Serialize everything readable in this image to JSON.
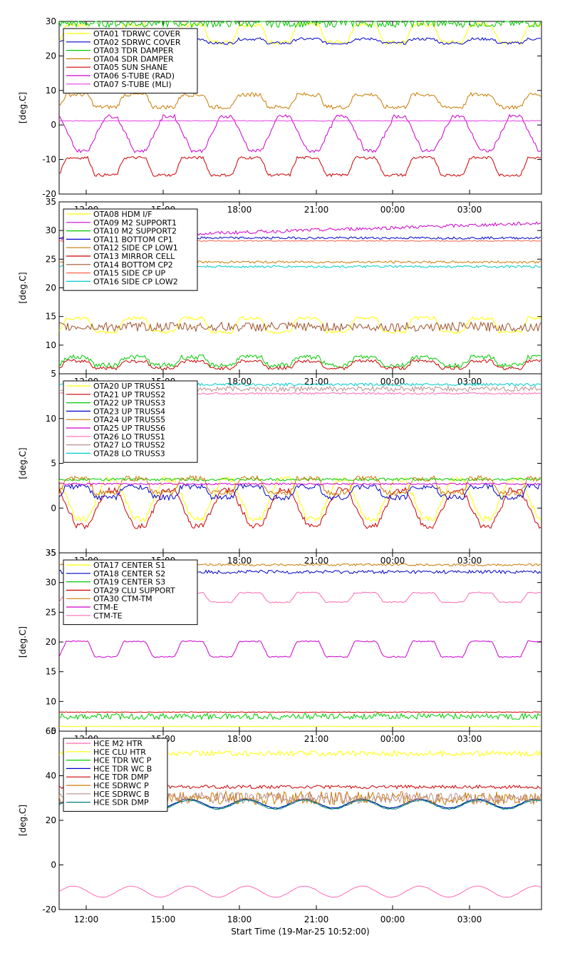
{
  "chart_data": [
    {
      "type": "line",
      "ylabel": "[deg.C]",
      "ylim": [
        -20,
        30
      ],
      "yticks": [
        -20,
        -10,
        0,
        10,
        20,
        30
      ],
      "legend_placement": "top-left",
      "series": [
        {
          "name": "OTA01 TDRWC COVER",
          "color": "#ffff00",
          "kind": "step",
          "base": 26.5,
          "amp": 2.5,
          "jitter": 0.6
        },
        {
          "name": "OTA02 SDRWC COVER",
          "color": "#0000cc",
          "kind": "step",
          "base": 24.3,
          "amp": 0.6,
          "jitter": 0.4
        },
        {
          "name": "OTA03 TDR DAMPER",
          "color": "#00cc00",
          "kind": "noise",
          "base": 29.5,
          "amp": 0.3,
          "jitter": 1.2
        },
        {
          "name": "OTA04 SDR DAMPER",
          "color": "#cc7a00",
          "kind": "step",
          "base": 7,
          "amp": 1.8,
          "jitter": 0.6
        },
        {
          "name": "OTA05 SUN SHANE",
          "color": "#cc0000",
          "kind": "step",
          "base": -12,
          "amp": 2.5,
          "jitter": 0.4
        },
        {
          "name": "OTA06 S-TUBE (RAD)",
          "color": "#cc00cc",
          "kind": "trap",
          "base": -2.5,
          "amp": 5,
          "jitter": 0.5
        },
        {
          "name": "OTA07 S-TUBE (MLI)",
          "color": "#e040e0",
          "kind": "flat",
          "base": 1.2,
          "amp": 0,
          "jitter": 0.1
        }
      ]
    },
    {
      "type": "line",
      "ylabel": "[deg.C]",
      "ylim": [
        5,
        35
      ],
      "yticks": [
        5,
        10,
        15,
        20,
        25,
        30,
        35
      ],
      "xticklabels": [
        "12:00",
        "15:00",
        "18:00",
        "21:00",
        "00:00",
        "03:00"
      ],
      "legend_placement": "top-left",
      "series": [
        {
          "name": "OTA08 HDM I/F",
          "color": "#ffff00",
          "kind": "step",
          "base": 13.5,
          "amp": 1.2,
          "jitter": 0.3
        },
        {
          "name": "OTA09 M2 SUPPORT1",
          "color": "#cc00cc",
          "kind": "rise",
          "base": 30,
          "amp": 1.3,
          "jitter": 0.3
        },
        {
          "name": "OTA10 M2 SUPPORT2",
          "color": "#00cc00",
          "kind": "step",
          "base": 7.2,
          "amp": 0.7,
          "jitter": 0.4
        },
        {
          "name": "OTA11 BOTTOM CP1",
          "color": "#0000cc",
          "kind": "flat",
          "base": 28.7,
          "amp": 0,
          "jitter": 0.2
        },
        {
          "name": "OTA12 SIDE CP LOW1",
          "color": "#cc7a00",
          "kind": "flat",
          "base": 24.5,
          "amp": 0.3,
          "jitter": 0.2
        },
        {
          "name": "OTA13 MIRROR CELL",
          "color": "#cc0000",
          "kind": "step",
          "base": 6.6,
          "amp": 0.6,
          "jitter": 0.3
        },
        {
          "name": "OTA14 BOTTOM CP2",
          "color": "#a0522d",
          "kind": "noise",
          "base": 13.2,
          "amp": 0.2,
          "jitter": 0.8
        },
        {
          "name": "OTA15 SIDE CP UP",
          "color": "#ff6347",
          "kind": "flat",
          "base": 28.2,
          "amp": 0,
          "jitter": 0.1
        },
        {
          "name": "OTA16 SIDE CP LOW2",
          "color": "#00cccc",
          "kind": "flat",
          "base": 23.7,
          "amp": 0,
          "jitter": 0.2
        }
      ]
    },
    {
      "type": "line",
      "ylabel": "[deg.C]",
      "ylim": [
        -5,
        15
      ],
      "yticks": [
        -5,
        0,
        5,
        10
      ],
      "xticklabels": [
        "12:00",
        "15:00",
        "18:00",
        "21:00",
        "00:00",
        "03:00"
      ],
      "legend_placement": "top-left",
      "series": [
        {
          "name": "OTA20 UP TRUSS1",
          "color": "#ffff00",
          "kind": "trap",
          "base": 1,
          "amp": 2.2,
          "jitter": 0.3
        },
        {
          "name": "OTA21 UP TRUSS2",
          "color": "#cc0000",
          "kind": "trap",
          "base": 0,
          "amp": 2,
          "jitter": 0.3
        },
        {
          "name": "OTA22 UP TRUSS3",
          "color": "#00cc00",
          "kind": "flat",
          "base": 3.2,
          "amp": 0,
          "jitter": 0.15
        },
        {
          "name": "OTA23 UP TRUSS4",
          "color": "#0000cc",
          "kind": "step",
          "base": 1.8,
          "amp": 0.6,
          "jitter": 0.3
        },
        {
          "name": "OTA24 UP TRUSS5",
          "color": "#cc7a00",
          "kind": "step",
          "base": 2.5,
          "amp": 0.8,
          "jitter": 0.3
        },
        {
          "name": "OTA25 UP TRUSS6",
          "color": "#cc00cc",
          "kind": "flat",
          "base": 2.7,
          "amp": 0,
          "jitter": 0.1
        },
        {
          "name": "OTA26 LO TRUSS1",
          "color": "#ff69b4",
          "kind": "flat",
          "base": 12.8,
          "amp": 0,
          "jitter": 0.1
        },
        {
          "name": "OTA27 LO TRUSS2",
          "color": "#bc8f8f",
          "kind": "flat",
          "base": 13.3,
          "amp": 0,
          "jitter": 0.3
        },
        {
          "name": "OTA28 LO TRUSS3",
          "color": "#00cccc",
          "kind": "flat",
          "base": 13.8,
          "amp": 0,
          "jitter": 0.15
        }
      ]
    },
    {
      "type": "line",
      "ylabel": "[deg.C]",
      "ylim": [
        5,
        35
      ],
      "yticks": [
        5,
        10,
        15,
        20,
        25,
        30,
        35
      ],
      "xticklabels": [
        "12:00",
        "15:00",
        "18:00",
        "21:00",
        "00:00",
        "03:00"
      ],
      "legend_placement": "top-left",
      "series": [
        {
          "name": "OTA17 CENTER S1",
          "color": "#ffff00",
          "kind": "flat",
          "base": 5.8,
          "amp": 0,
          "jitter": 0.05
        },
        {
          "name": "OTA18 CENTER S2",
          "color": "#0000cc",
          "kind": "flat",
          "base": 31.8,
          "amp": 0,
          "jitter": 0.3
        },
        {
          "name": "OTA19 CENTER S3",
          "color": "#00cc00",
          "kind": "noise",
          "base": 7.5,
          "amp": 0,
          "jitter": 0.5
        },
        {
          "name": "OTA29 CLU SUPPORT",
          "color": "#cc0000",
          "kind": "flat",
          "base": 8.2,
          "amp": 0,
          "jitter": 0.05
        },
        {
          "name": "OTA30 CTM-TM",
          "color": "#cc7a00",
          "kind": "flat",
          "base": 33,
          "amp": 0,
          "jitter": 0.2
        },
        {
          "name": "CTM-E",
          "color": "#cc00cc",
          "kind": "step",
          "base": 18.8,
          "amp": 1.3,
          "jitter": 0.1
        },
        {
          "name": "CTM-TE",
          "color": "#ff69b4",
          "kind": "step",
          "base": 27.5,
          "amp": 0.8,
          "jitter": 0.1
        }
      ]
    },
    {
      "type": "line",
      "ylabel": "[deg.C]",
      "ylim": [
        -20,
        60
      ],
      "yticks": [
        -20,
        0,
        20,
        40,
        60
      ],
      "xticklabels": [
        "12:00",
        "15:00",
        "18:00",
        "21:00",
        "00:00",
        "03:00"
      ],
      "xlabel": "Start Time (19-Mar-25 10:52:00)",
      "legend_placement": "top-left",
      "series": [
        {
          "name": "HCE M2 HTR",
          "color": "#ff69b4",
          "kind": "sine",
          "base": -12,
          "amp": 2.5,
          "jitter": 0.1
        },
        {
          "name": "HCE CLU HTR",
          "color": "#ffff00",
          "kind": "noise",
          "base": 50,
          "amp": 0,
          "jitter": 1.2
        },
        {
          "name": "HCE TDR WC P",
          "color": "#00cc00",
          "kind": "sine",
          "base": 27.5,
          "amp": 2,
          "jitter": 0.2
        },
        {
          "name": "HCE TDR WC B",
          "color": "#0000cc",
          "kind": "sine",
          "base": 27.5,
          "amp": 2,
          "jitter": 0.2
        },
        {
          "name": "HCE TDR DMP",
          "color": "#cc0000",
          "kind": "noise",
          "base": 35,
          "amp": 0,
          "jitter": 0.8
        },
        {
          "name": "HCE SDRWC P",
          "color": "#cc7a00",
          "kind": "noise",
          "base": 30,
          "amp": 0,
          "jitter": 3
        },
        {
          "name": "HCE SDRWC B",
          "color": "#bc8f8f",
          "kind": "noise",
          "base": 30,
          "amp": 0,
          "jitter": 2.5
        },
        {
          "name": "HCE SDR DMP",
          "color": "#008080",
          "kind": "sine",
          "base": 27,
          "amp": 2,
          "jitter": 0.2
        }
      ]
    }
  ]
}
